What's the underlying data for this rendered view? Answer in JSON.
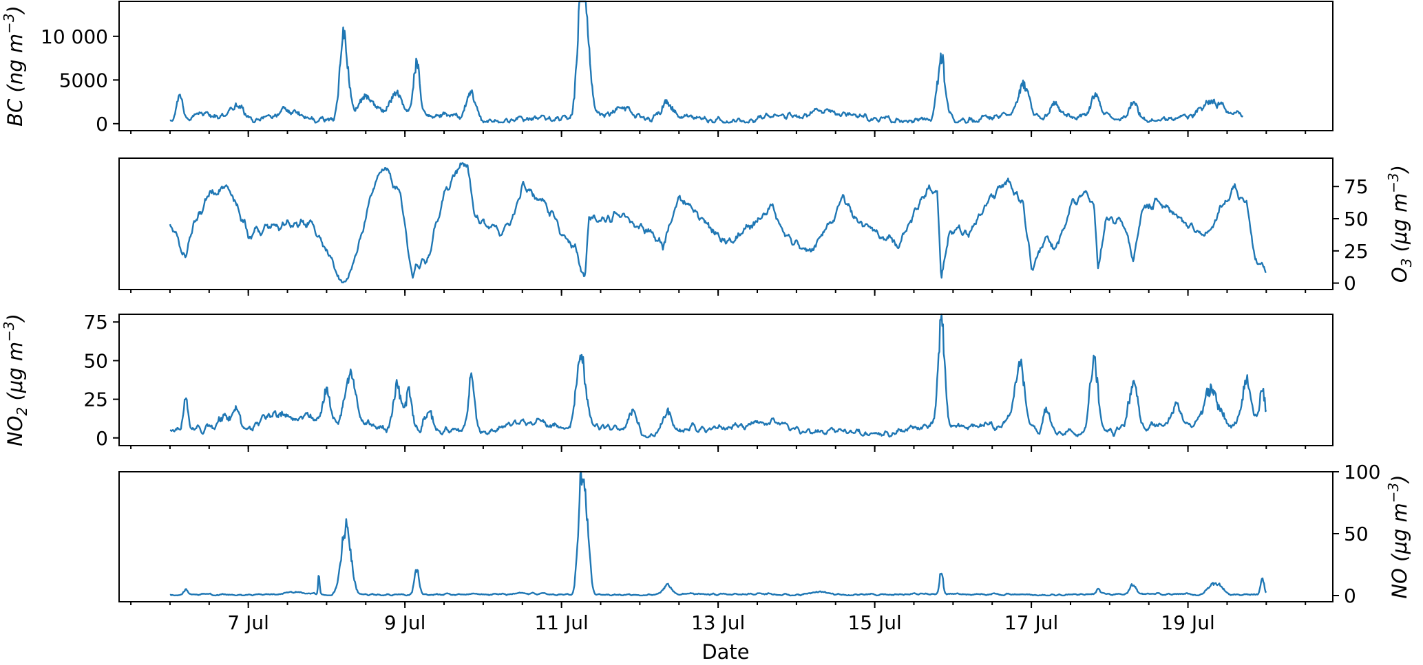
{
  "chart_data": [
    {
      "type": "line",
      "id": "bc",
      "ylabel_main": "BC",
      "ylabel_unit": "(ng m",
      "ylabel_sup": "−3",
      "ylabel_close": ")",
      "ylabel_side": "left",
      "ylim": [
        -800,
        14000
      ],
      "yticks": [
        0,
        5000,
        10000
      ],
      "ytick_labels": [
        "0",
        "5000",
        "10 000"
      ],
      "x_range": [
        6.0,
        19.7
      ],
      "baseline": 900,
      "noise": 350,
      "floor": 100,
      "events": [
        [
          6.12,
          2800,
          0.03
        ],
        [
          6.85,
          1500,
          0.08
        ],
        [
          7.5,
          900,
          0.15
        ],
        [
          8.22,
          9000,
          0.05
        ],
        [
          8.5,
          2000,
          0.1
        ],
        [
          8.9,
          2500,
          0.08
        ],
        [
          9.15,
          6000,
          0.04
        ],
        [
          9.85,
          3000,
          0.06
        ],
        [
          11.25,
          12500,
          0.05
        ],
        [
          11.32,
          8000,
          0.05
        ],
        [
          11.8,
          800,
          0.1
        ],
        [
          12.35,
          1800,
          0.08
        ],
        [
          14.3,
          500,
          0.1
        ],
        [
          15.85,
          6800,
          0.05
        ],
        [
          16.9,
          3500,
          0.06
        ],
        [
          17.3,
          1500,
          0.05
        ],
        [
          17.82,
          2200,
          0.06
        ],
        [
          18.3,
          2200,
          0.06
        ],
        [
          19.3,
          1800,
          0.15
        ]
      ]
    },
    {
      "type": "line",
      "id": "o3",
      "ylabel_main": "O",
      "ylabel_sub": "3",
      "ylabel_unit": "(μg m",
      "ylabel_sup": "−3",
      "ylabel_close": ")",
      "ylabel_side": "right",
      "ylim": [
        -5,
        97
      ],
      "yticks": [
        0,
        25,
        50,
        75
      ],
      "ytick_labels": [
        "0",
        "25",
        "50",
        "75"
      ],
      "x_range": [
        6.0,
        20.0
      ],
      "noise": 3.5,
      "floor": 0,
      "profile": [
        [
          6.0,
          45
        ],
        [
          6.2,
          20
        ],
        [
          6.25,
          35
        ],
        [
          6.5,
          70
        ],
        [
          6.7,
          75
        ],
        [
          6.9,
          55
        ],
        [
          7.0,
          38
        ],
        [
          7.2,
          42
        ],
        [
          7.5,
          45
        ],
        [
          7.8,
          48
        ],
        [
          8.0,
          25
        ],
        [
          8.2,
          3
        ],
        [
          8.3,
          5
        ],
        [
          8.6,
          75
        ],
        [
          8.75,
          90
        ],
        [
          8.95,
          65
        ],
        [
          9.1,
          8
        ],
        [
          9.3,
          20
        ],
        [
          9.5,
          70
        ],
        [
          9.7,
          90
        ],
        [
          9.8,
          92
        ],
        [
          9.9,
          50
        ],
        [
          10.2,
          40
        ],
        [
          10.4,
          50
        ],
        [
          10.5,
          75
        ],
        [
          10.7,
          65
        ],
        [
          10.9,
          55
        ],
        [
          11.0,
          40
        ],
        [
          11.2,
          25
        ],
        [
          11.3,
          3
        ],
        [
          11.35,
          50
        ],
        [
          11.6,
          50
        ],
        [
          11.8,
          50
        ],
        [
          12.0,
          45
        ],
        [
          12.2,
          35
        ],
        [
          12.3,
          30
        ],
        [
          12.5,
          65
        ],
        [
          12.7,
          55
        ],
        [
          13.0,
          35
        ],
        [
          13.2,
          32
        ],
        [
          13.5,
          50
        ],
        [
          13.7,
          58
        ],
        [
          13.9,
          35
        ],
        [
          14.2,
          25
        ],
        [
          14.6,
          65
        ],
        [
          14.8,
          45
        ],
        [
          15.0,
          40
        ],
        [
          15.3,
          30
        ],
        [
          15.7,
          75
        ],
        [
          15.8,
          70
        ],
        [
          15.85,
          5
        ],
        [
          15.95,
          40
        ],
        [
          16.2,
          40
        ],
        [
          16.4,
          60
        ],
        [
          16.7,
          80
        ],
        [
          16.9,
          60
        ],
        [
          17.0,
          10
        ],
        [
          17.2,
          38
        ],
        [
          17.3,
          25
        ],
        [
          17.5,
          60
        ],
        [
          17.7,
          70
        ],
        [
          17.8,
          65
        ],
        [
          17.85,
          10
        ],
        [
          17.95,
          48
        ],
        [
          18.2,
          45
        ],
        [
          18.3,
          15
        ],
        [
          18.4,
          55
        ],
        [
          18.6,
          65
        ],
        [
          18.8,
          55
        ],
        [
          19.0,
          45
        ],
        [
          19.2,
          35
        ],
        [
          19.4,
          55
        ],
        [
          19.6,
          75
        ],
        [
          19.75,
          60
        ],
        [
          19.85,
          20
        ],
        [
          20.0,
          12
        ]
      ]
    },
    {
      "type": "line",
      "id": "no2",
      "ylabel_main": "NO",
      "ylabel_sub": "2",
      "ylabel_unit": "(μg m",
      "ylabel_sup": "−3",
      "ylabel_close": ")",
      "ylabel_side": "left",
      "ylim": [
        -5,
        80
      ],
      "yticks": [
        0,
        25,
        50,
        75
      ],
      "ytick_labels": [
        "0",
        "25",
        "50",
        "75"
      ],
      "x_range": [
        6.0,
        20.0
      ],
      "baseline": 8,
      "noise": 2.2,
      "floor": 0,
      "events": [
        [
          6.2,
          20,
          0.03
        ],
        [
          6.7,
          10,
          0.1
        ],
        [
          6.85,
          12,
          0.06
        ],
        [
          7.3,
          8,
          0.2
        ],
        [
          7.8,
          6,
          0.15
        ],
        [
          8.0,
          18,
          0.05
        ],
        [
          8.3,
          32,
          0.07
        ],
        [
          8.9,
          30,
          0.05
        ],
        [
          9.05,
          25,
          0.05
        ],
        [
          9.3,
          14,
          0.06
        ],
        [
          9.85,
          35,
          0.04
        ],
        [
          11.25,
          45,
          0.06
        ],
        [
          11.9,
          15,
          0.05
        ],
        [
          12.35,
          16,
          0.05
        ],
        [
          15.85,
          65,
          0.04
        ],
        [
          16.85,
          40,
          0.06
        ],
        [
          17.2,
          15,
          0.05
        ],
        [
          17.8,
          45,
          0.05
        ],
        [
          18.3,
          30,
          0.06
        ],
        [
          18.85,
          12,
          0.05
        ],
        [
          19.3,
          25,
          0.1
        ],
        [
          19.75,
          30,
          0.06
        ],
        [
          19.95,
          25,
          0.04
        ]
      ]
    },
    {
      "type": "line",
      "id": "no",
      "ylabel_main": "NO",
      "ylabel_unit": "(μg m",
      "ylabel_sup": "−3",
      "ylabel_close": ")",
      "ylabel_side": "right",
      "ylim": [
        -5,
        100
      ],
      "yticks": [
        0,
        50,
        100
      ],
      "ytick_labels": [
        "0",
        "50",
        "100"
      ],
      "x_range": [
        6.0,
        20.0
      ],
      "baseline": 1.2,
      "noise": 0.7,
      "floor": 0,
      "events": [
        [
          6.2,
          4,
          0.03
        ],
        [
          7.6,
          1.5,
          0.1
        ],
        [
          7.9,
          15,
          0.01
        ],
        [
          8.25,
          55,
          0.06
        ],
        [
          9.15,
          20,
          0.03
        ],
        [
          11.25,
          85,
          0.04
        ],
        [
          11.32,
          50,
          0.04
        ],
        [
          12.35,
          8,
          0.05
        ],
        [
          14.3,
          3,
          0.1
        ],
        [
          15.85,
          20,
          0.02
        ],
        [
          17.85,
          4,
          0.02
        ],
        [
          18.3,
          8,
          0.04
        ],
        [
          19.35,
          10,
          0.08
        ],
        [
          19.95,
          15,
          0.02
        ]
      ]
    }
  ],
  "xaxis": {
    "label": "Date",
    "domain": [
      5.35,
      20.85
    ],
    "tick_values": [
      7,
      9,
      11,
      13,
      15,
      17,
      19
    ],
    "tick_labels": [
      "7 Jul",
      "9 Jul",
      "11 Jul",
      "13 Jul",
      "15 Jul",
      "17 Jul",
      "19 Jul"
    ],
    "minor_start": 5.5,
    "minor_end": 20.5,
    "minor_step": 0.5
  },
  "colors": {
    "series": "#1f77b4",
    "axes": "#000000",
    "background": "#ffffff"
  }
}
